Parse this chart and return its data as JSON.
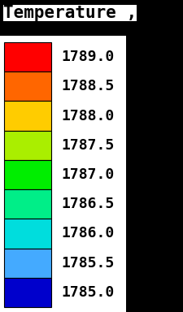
{
  "title": "Temperature ,",
  "labels": [
    "1789.0",
    "1788.5",
    "1788.0",
    "1787.5",
    "1787.0",
    "1786.5",
    "1786.0",
    "1785.5",
    "1785.0"
  ],
  "colors": [
    "#ff0000",
    "#ff6600",
    "#ffcc00",
    "#aaee00",
    "#00ee00",
    "#00ee88",
    "#00dddd",
    "#44aaff",
    "#0000cc"
  ],
  "background_color": "#ffffff",
  "black_panel_color": "#000000",
  "title_fontsize": 15,
  "label_fontsize": 13,
  "fig_width": 2.25,
  "fig_height": 3.84,
  "dpi": 100
}
